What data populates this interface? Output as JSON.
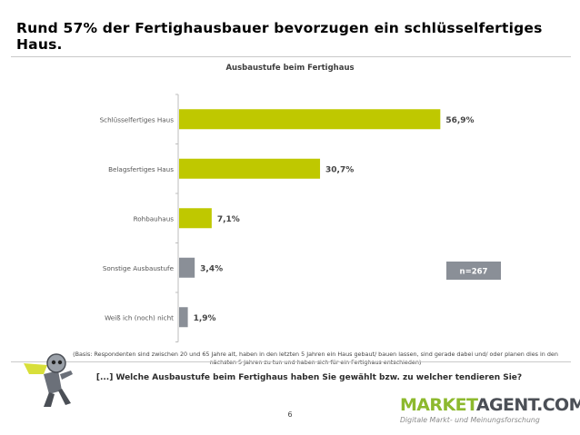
{
  "headline": "Rund 57% der Fertighausbauer bevorzugen ein schlüsselfertiges Haus.",
  "note": "n=267",
  "basis": "(Basis: Respondenten sind zwischen 20 und 65 Jahre alt, haben in den letzten 5 Jahren ein Haus gebaut/ bauen lassen, sind gerade dabei und/ oder planen dies in den nächsten 5 Jahren zu tun und haben sich für ein Fertighaus entschieden)",
  "question": "[...] Welche Ausbaustufe beim Fertighaus haben Sie gewählt bzw. zu welcher tendieren Sie?",
  "page_number": "6",
  "brand": {
    "name": "MARKETAGENT.COM",
    "tagline": "Digitale Markt- und Meinungsforschung"
  },
  "colors": {
    "primary_bar": "#BFC800",
    "secondary_bar": "#8A8F97",
    "brand_green": "#8DB92E",
    "brand_dark": "#4B4F56"
  },
  "chart_data": {
    "type": "bar",
    "orientation": "horizontal",
    "title": "Ausbaustufe beim Fertighaus",
    "categories": [
      "Schlüsselfertiges Haus",
      "Belagsfertiges Haus",
      "Rohbauhaus",
      "Sonstige Ausbaustufe",
      "Weiß ich (noch) nicht"
    ],
    "values": [
      56.9,
      30.7,
      7.1,
      3.4,
      1.9
    ],
    "value_labels": [
      "56,9%",
      "30,7%",
      "7,1%",
      "3,4%",
      "1,9%"
    ],
    "bar_colors": [
      "#BFC800",
      "#BFC800",
      "#BFC800",
      "#8A8F97",
      "#8A8F97"
    ],
    "xlim": [
      0,
      100
    ],
    "grid": false,
    "unit": "%"
  }
}
